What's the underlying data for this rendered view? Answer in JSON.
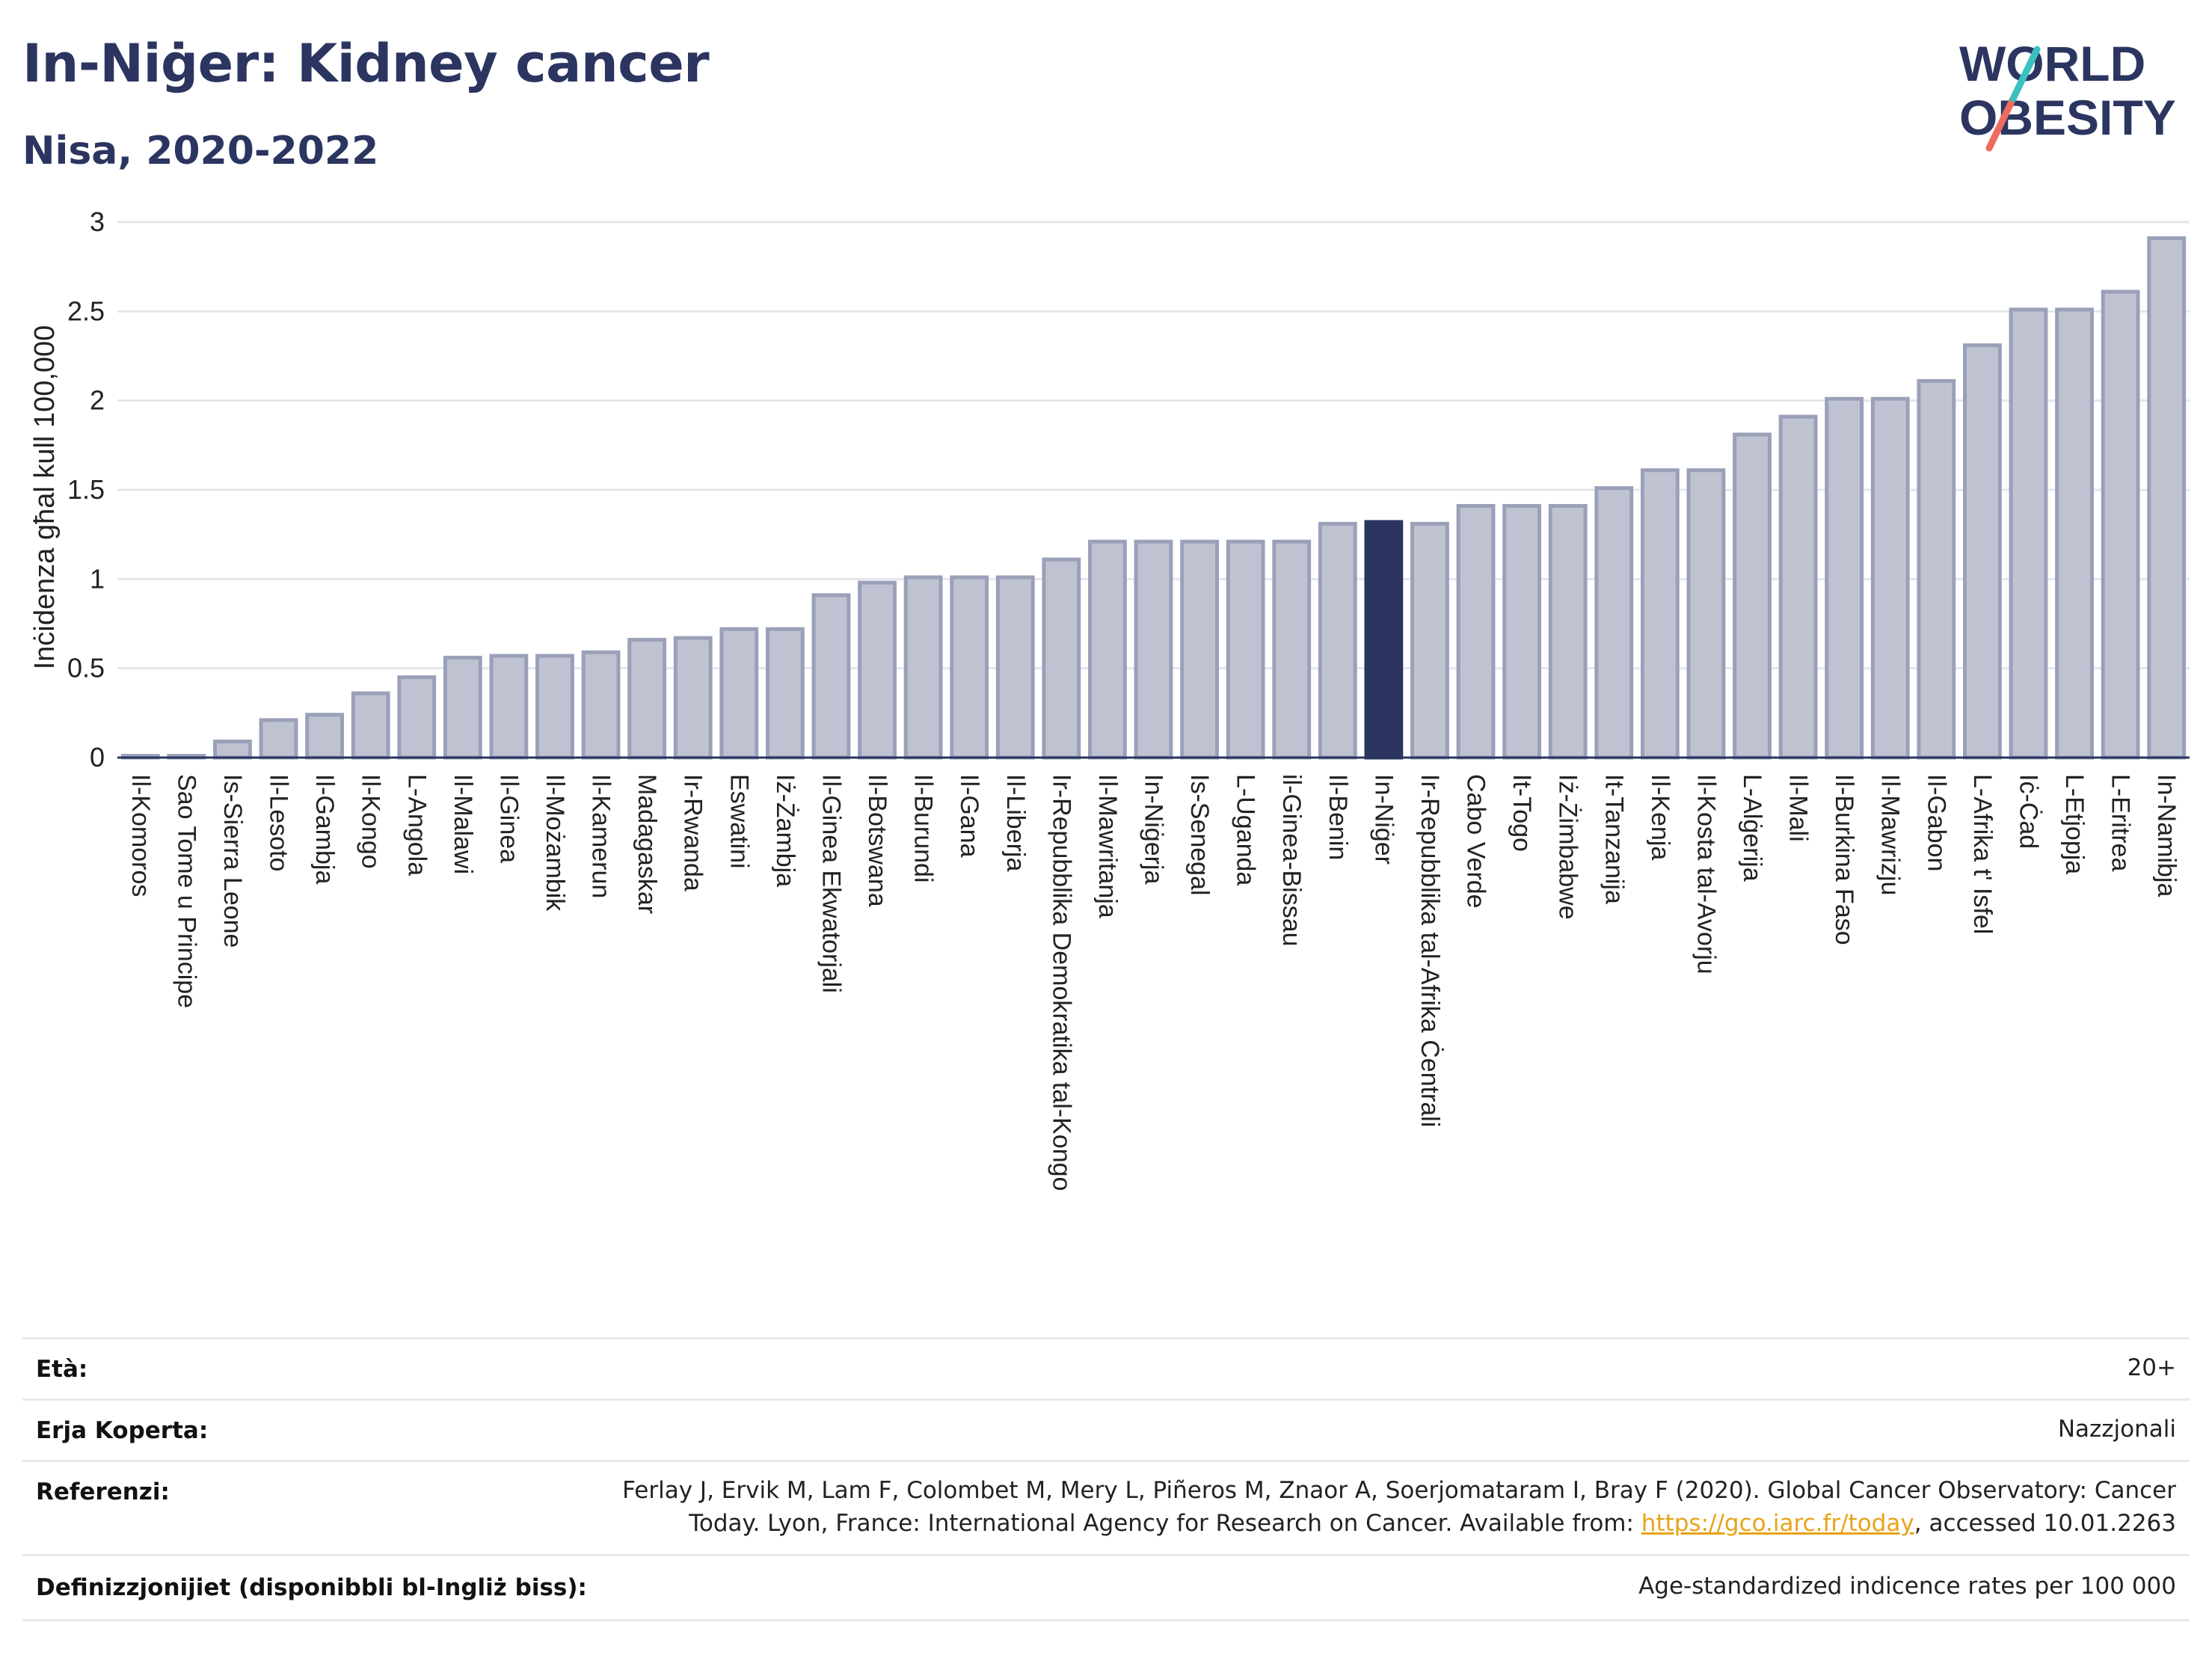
{
  "header": {
    "title": "In-Niġer: Kidney cancer",
    "subtitle": "Nisa, 2020-2022"
  },
  "logo": {
    "line1": "WORLD",
    "line2": "OBESITY"
  },
  "colors": {
    "bar_fill": "#bfc3d1",
    "bar_stroke": "#9aa0b8",
    "highlight": "#2b3560",
    "text": "#2b3560",
    "grid": "#e5e7ee",
    "logo_teal": "#3bbfbf",
    "logo_coral": "#ec6b5e"
  },
  "chart_data": {
    "type": "bar",
    "ylabel": "Inċidenza għal kull 100,000",
    "ylim": [
      0,
      3
    ],
    "yticks": [
      "0",
      "0.5",
      "1",
      "1.5",
      "2",
      "2.5",
      "3"
    ],
    "highlight_category": "In-Niġer",
    "categories": [
      "Il-Komoros",
      "Sao Tome u Principe",
      "Is-Sierra Leone",
      "Il-Lesoto",
      "Il-Gambja",
      "Il-Kongo",
      "L-Angola",
      "Il-Malawi",
      "Il-Ginea",
      "Il-Możambik",
      "Il-Kamerun",
      "Madagaskar",
      "Ir-Rwanda",
      "Eswatini",
      "Iż-Żambja",
      "Il-Ginea Ekwatorjali",
      "Il-Botswana",
      "Il-Burundi",
      "Il-Gana",
      "Il-Liberja",
      "Ir-Repubblika Demokratika tal-Kongo",
      "Il-Mawritanja",
      "In-Niġerja",
      "Is-Senegal",
      "L-Uganda",
      "il-Ginea-Bissau",
      "Il-Benin",
      "In-Niġer",
      "Ir-Repubblika tal-Afrika Ċentrali",
      "Cabo Verde",
      "It-Togo",
      "Iż-Żimbabwe",
      "It-Tanzanija",
      "Il-Kenja",
      "Il-Kosta tal-Avorju",
      "L-Alġerija",
      "Il-Mali",
      "Il-Burkina Faso",
      "Il-Mawrizju",
      "Il-Gabon",
      "L-Afrika t' Isfel",
      "Iċ-Ċad",
      "L-Etjopja",
      "L-Eritrea",
      "In-Namibja"
    ],
    "values": [
      0.01,
      0.01,
      0.09,
      0.21,
      0.24,
      0.36,
      0.45,
      0.56,
      0.57,
      0.57,
      0.59,
      0.66,
      0.67,
      0.72,
      0.72,
      0.91,
      0.98,
      1.01,
      1.01,
      1.01,
      1.11,
      1.21,
      1.21,
      1.21,
      1.21,
      1.21,
      1.31,
      1.32,
      1.31,
      1.41,
      1.41,
      1.41,
      1.51,
      1.61,
      1.61,
      1.81,
      1.91,
      2.01,
      2.01,
      2.11,
      2.31,
      2.51,
      2.51,
      2.61,
      2.91
    ]
  },
  "meta": {
    "age_label": "Età:",
    "age_value": "20+",
    "area_label": "Erja Koperta:",
    "area_value": "Nazzjonali",
    "ref_label": "Referenzi:",
    "ref_line1": "Ferlay J, Ervik M, Lam F, Colombet M, Mery L, Piñeros M, Znaor A, Soerjomataram I, Bray F (2020). Global Cancer Observatory: Cancer",
    "ref_line2_pre": "Today. Lyon, France: International Agency for Research on Cancer. Available from: ",
    "ref_link": "https://gco.iarc.fr/today",
    "ref_line2_post": ", accessed 10.01.2263",
    "def_label": "Definizzjonijiet (disponibbli bl-Ingliż biss):",
    "def_value": "Age-standardized indicence rates per 100 000"
  }
}
